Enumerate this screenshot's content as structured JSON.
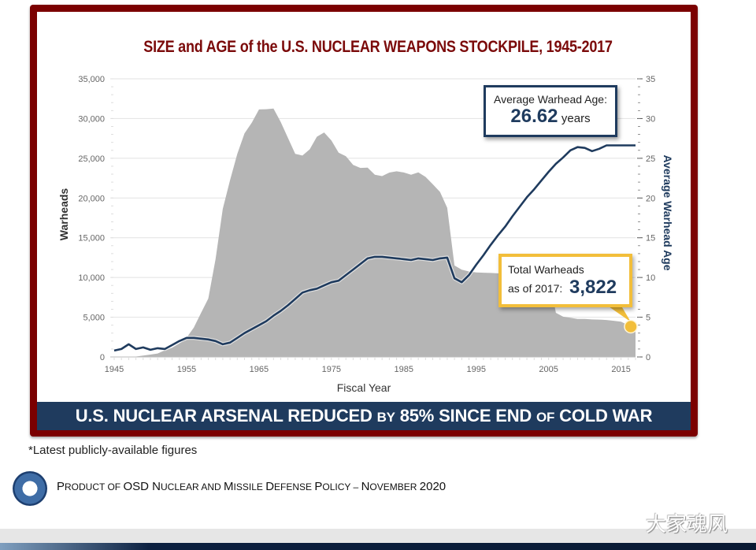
{
  "banner": {
    "part1": "U.S. NUCLEAR ARSENAL REDUCED ",
    "part2": "BY",
    "part3": " 85% SINCE END ",
    "part4": "OF",
    "part5": " COLD WAR"
  },
  "callout_age": {
    "label": "Average Warhead Age:",
    "value": "26.62",
    "unit": "years"
  },
  "callout_total": {
    "line1": "Total Warheads",
    "line2": "as of 2017:",
    "value": "3,822"
  },
  "footnote": "*Latest publicly-available figures",
  "product": {
    "p1": "P",
    "p2": "RODUCT OF ",
    "p3": "OSD N",
    "p4": "UCLEAR AND ",
    "p5": "M",
    "p6": "ISSILE ",
    "p7": "D",
    "p8": "EFENSE ",
    "p9": "P",
    "p10": "OLICY – ",
    "p11": "N",
    "p12": "OVEMBER ",
    "p13": "2020"
  },
  "watermark": "大家魂风",
  "colors": {
    "frame": "#7b0000",
    "banner": "#1f3b5e",
    "area": "#b5b5b5",
    "age_line": "#1f3b5e",
    "highlight": "#f2be3a"
  },
  "chart_data": {
    "type": "area",
    "title": "SIZE and AGE of the U.S. NUCLEAR WEAPONS STOCKPILE, 1945-2017",
    "xlabel": "Fiscal Year",
    "ylabel": "Warheads",
    "y2label": "Average Warhead Age",
    "xlim": [
      1945,
      2017
    ],
    "ylim": [
      0,
      35000
    ],
    "y2lim": [
      0,
      35
    ],
    "x_ticks": [
      "1945",
      "1955",
      "1965",
      "1975",
      "1985",
      "1995",
      "2005",
      "2015"
    ],
    "y_ticks": [
      "0",
      "5,000",
      "10,000",
      "15,000",
      "20,000",
      "25,000",
      "30,000",
      "35,000"
    ],
    "y2_ticks": [
      "0",
      "5",
      "10",
      "15",
      "20",
      "25",
      "30",
      "35"
    ],
    "grid": true,
    "series": [
      {
        "name": "Warheads",
        "type": "area",
        "axis": "left",
        "x": [
          1945,
          1946,
          1947,
          1948,
          1949,
          1950,
          1951,
          1952,
          1953,
          1954,
          1955,
          1956,
          1957,
          1958,
          1959,
          1960,
          1961,
          1962,
          1963,
          1964,
          1965,
          1966,
          1967,
          1968,
          1969,
          1970,
          1971,
          1972,
          1973,
          1974,
          1975,
          1976,
          1977,
          1978,
          1979,
          1980,
          1981,
          1982,
          1983,
          1984,
          1985,
          1986,
          1987,
          1988,
          1989,
          1990,
          1991,
          1992,
          1993,
          1994,
          1995,
          1996,
          1997,
          1998,
          1999,
          2000,
          2001,
          2002,
          2003,
          2004,
          2005,
          2006,
          2007,
          2008,
          2009,
          2010,
          2011,
          2012,
          2013,
          2014,
          2015,
          2016,
          2017
        ],
        "values": [
          2,
          9,
          13,
          50,
          170,
          299,
          438,
          841,
          1169,
          1703,
          2422,
          3692,
          5543,
          7345,
          12298,
          18638,
          22229,
          25540,
          28133,
          29463,
          31139,
          31175,
          31255,
          29561,
          27552,
          25554,
          25340,
          26129,
          27714,
          28251,
          27235,
          25698,
          25250,
          24168,
          23784,
          23816,
          22930,
          22755,
          23202,
          23364,
          23214,
          22930,
          23229,
          22656,
          21723,
          20766,
          18761,
          11511,
          10982,
          10757,
          10633,
          10597,
          10570,
          10521,
          10477,
          10526,
          10491,
          10527,
          10434,
          10434,
          10378,
          5551,
          5066,
          4938,
          4775,
          4783,
          4723,
          4700,
          4650,
          4550,
          4438,
          4000,
          3822
        ]
      },
      {
        "name": "Average Warhead Age",
        "type": "line",
        "axis": "right",
        "x": [
          1945,
          1946,
          1947,
          1948,
          1949,
          1950,
          1951,
          1952,
          1953,
          1954,
          1955,
          1956,
          1957,
          1958,
          1959,
          1960,
          1961,
          1962,
          1963,
          1964,
          1965,
          1966,
          1967,
          1968,
          1969,
          1970,
          1971,
          1972,
          1973,
          1974,
          1975,
          1976,
          1977,
          1978,
          1979,
          1980,
          1981,
          1982,
          1983,
          1984,
          1985,
          1986,
          1987,
          1988,
          1989,
          1990,
          1991,
          1992,
          1993,
          1994,
          1995,
          1996,
          1997,
          1998,
          1999,
          2000,
          2001,
          2002,
          2003,
          2004,
          2005,
          2006,
          2007,
          2008,
          2009,
          2010,
          2011,
          2012,
          2013,
          2014,
          2015,
          2016,
          2017
        ],
        "values": [
          0.8,
          1.0,
          1.6,
          1.0,
          1.2,
          0.9,
          1.1,
          1.0,
          1.5,
          2.0,
          2.4,
          2.4,
          2.3,
          2.2,
          2.0,
          1.6,
          1.8,
          2.4,
          3.0,
          3.5,
          4.0,
          4.5,
          5.2,
          5.8,
          6.5,
          7.3,
          8.1,
          8.4,
          8.6,
          9.0,
          9.4,
          9.6,
          10.3,
          11.0,
          11.7,
          12.4,
          12.6,
          12.6,
          12.5,
          12.4,
          12.3,
          12.2,
          12.4,
          12.3,
          12.2,
          12.4,
          12.5,
          9.9,
          9.4,
          10.3,
          11.6,
          12.8,
          14.1,
          15.3,
          16.4,
          17.7,
          18.9,
          20.1,
          21.1,
          22.2,
          23.3,
          24.3,
          25.1,
          26.0,
          26.4,
          26.3,
          25.9,
          26.2,
          26.62,
          26.62,
          26.62,
          26.62,
          26.62
        ]
      }
    ],
    "annotations": [
      {
        "text": "Average Warhead Age: 26.62 years",
        "target_year": 2017
      },
      {
        "text": "Total Warheads as of 2017: 3,822",
        "target_year": 2017,
        "target_value": 3822
      }
    ]
  }
}
